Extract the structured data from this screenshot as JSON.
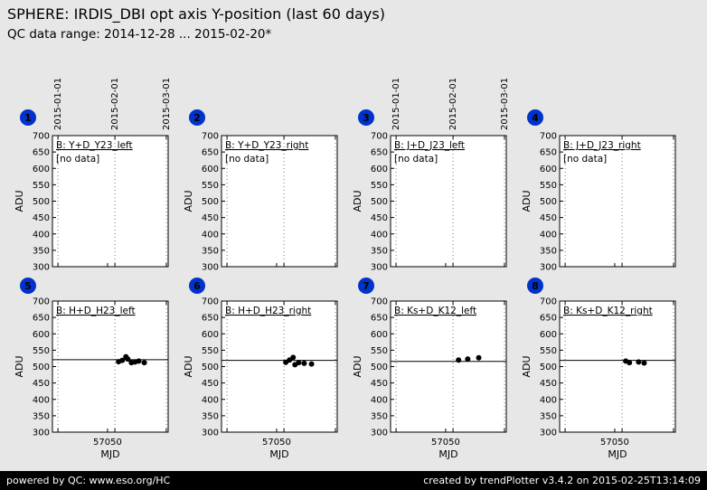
{
  "header": {
    "title": "SPHERE: IRDIS_DBI opt axis Y-position (last 60 days)",
    "subtitle": "QC data range: 2014-12-28 ... 2015-02-20*"
  },
  "footer": {
    "left": "powered by QC: www.eso.org/HC",
    "right": "created by trendPlotter v3.4.2 on 2015-02-25T13:14:09"
  },
  "colors": {
    "background": "#e7e7e7",
    "badge": "#0033cc",
    "footer_bg": "#000000",
    "point": "#000000",
    "plot_bg": "#ffffff"
  },
  "no_data_text": "[no data]",
  "axes": {
    "ylabel": "ADU",
    "xlabel": "MJD",
    "ylim": [
      300,
      700
    ],
    "yticks": [
      700,
      650,
      600,
      550,
      500,
      450,
      400,
      350,
      300
    ],
    "xlim": [
      57020,
      57083
    ],
    "xtick_value": 57050,
    "xtick_label": "57050",
    "grid": "dotted-vertical",
    "date_ticks": [
      {
        "mjd": 57023,
        "label": "2015-01-01"
      },
      {
        "mjd": 57054,
        "label": "2015-02-01"
      },
      {
        "mjd": 57082,
        "label": "2015-03-01"
      }
    ]
  },
  "chart_data": [
    {
      "type": "scatter",
      "number": 1,
      "label": "B: Y+D_Y23_left",
      "no_data": true,
      "ref_line": null,
      "points": []
    },
    {
      "type": "scatter",
      "number": 2,
      "label": "B: Y+D_Y23_right",
      "no_data": true,
      "ref_line": null,
      "points": []
    },
    {
      "type": "scatter",
      "number": 3,
      "label": "B: J+D_J23_left",
      "no_data": true,
      "ref_line": null,
      "points": []
    },
    {
      "type": "scatter",
      "number": 4,
      "label": "B: J+D_J23_right",
      "no_data": true,
      "ref_line": null,
      "points": []
    },
    {
      "type": "scatter",
      "number": 5,
      "label": "B: H+D_H23_left",
      "no_data": false,
      "ref_line": 521,
      "points": [
        [
          57056,
          515
        ],
        [
          57058,
          519
        ],
        [
          57060,
          530
        ],
        [
          57061,
          523
        ],
        [
          57063,
          512
        ],
        [
          57065,
          514
        ],
        [
          57067,
          517
        ],
        [
          57070,
          512
        ]
      ]
    },
    {
      "type": "scatter",
      "number": 6,
      "label": "B: H+D_H23_right",
      "no_data": false,
      "ref_line": 519,
      "points": [
        [
          57055,
          513
        ],
        [
          57057,
          520
        ],
        [
          57059,
          528
        ],
        [
          57060,
          506
        ],
        [
          57062,
          512
        ],
        [
          57065,
          510
        ],
        [
          57069,
          508
        ]
      ]
    },
    {
      "type": "scatter",
      "number": 7,
      "label": "B: Ks+D_K12_left",
      "no_data": false,
      "ref_line": 516,
      "points": [
        [
          57057,
          520
        ],
        [
          57062,
          523
        ],
        [
          57068,
          527
        ]
      ]
    },
    {
      "type": "scatter",
      "number": 8,
      "label": "B: Ks+D_K12_right",
      "no_data": false,
      "ref_line": 519,
      "points": [
        [
          57056,
          517
        ],
        [
          57058,
          512
        ],
        [
          57063,
          514
        ],
        [
          57066,
          511
        ]
      ]
    }
  ]
}
